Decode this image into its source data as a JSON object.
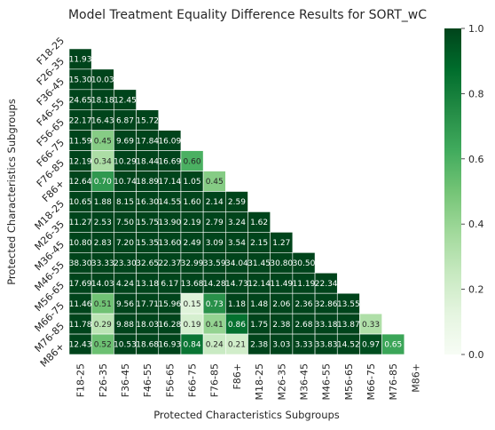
{
  "chart_data": {
    "type": "heatmap",
    "title": "Model Treatment Equality Difference Results for SORT_wC",
    "xlabel": "Protected Characteristics Subgroups",
    "ylabel": "Protected Characteristics Subgroups",
    "row_labels": [
      "F18-25",
      "F26-35",
      "F36-45",
      "F46-55",
      "F56-65",
      "F66-75",
      "F76-85",
      "F86+",
      "M18-25",
      "M26-35",
      "M36-45",
      "M46-55",
      "M56-65",
      "M66-75",
      "M76-85",
      "M86+"
    ],
    "col_labels": [
      "F18-25",
      "F26-35",
      "F36-45",
      "F46-55",
      "F56-65",
      "F66-75",
      "F76-85",
      "F86+",
      "M18-25",
      "M26-35",
      "M36-45",
      "M46-55",
      "M56-65",
      "M66-75",
      "M76-85",
      "M86+"
    ],
    "mask": "upper-triangle-including-diagonal",
    "value_labels": [
      [],
      [
        "11.93"
      ],
      [
        "15.30",
        "10.03"
      ],
      [
        "24.65",
        "18.18",
        "12.45"
      ],
      [
        "22.17",
        "16.43",
        "6.87",
        "15.72"
      ],
      [
        "11.59",
        "0.45",
        "9.69",
        "17.84",
        "16.09"
      ],
      [
        "12.19",
        "0.34",
        "10.29",
        "18.44",
        "16.69",
        "0.60"
      ],
      [
        "12.64",
        "0.70",
        "10.74",
        "18.89",
        "17.14",
        "1.05",
        "0.45"
      ],
      [
        "10.65",
        "1.88",
        "8.15",
        "16.30",
        "14.55",
        "1.60",
        "2.14",
        "2.59"
      ],
      [
        "11.27",
        "2.53",
        "7.50",
        "15.75",
        "13.90",
        "2.19",
        "2.79",
        "3.24",
        "1.62"
      ],
      [
        "10.80",
        "2.83",
        "7.20",
        "15.35",
        "13.60",
        "2.49",
        "3.09",
        "3.54",
        "2.15",
        "1.27"
      ],
      [
        "38.30",
        "33.33",
        "23.30",
        "32.65",
        "22.37",
        "32.99",
        "33.59",
        "34.04",
        "31.45",
        "30.80",
        "30.50"
      ],
      [
        "17.69",
        "14.03",
        "4.24",
        "13.18",
        "6.17",
        "13.68",
        "14.28",
        "14.73",
        "12.14",
        "11.49",
        "11.19",
        "22.34"
      ],
      [
        "11.46",
        "0.51",
        "9.56",
        "17.71",
        "15.96",
        "0.15",
        "0.73",
        "1.18",
        "1.48",
        "2.06",
        "2.36",
        "32.86",
        "13.55"
      ],
      [
        "11.78",
        "0.29",
        "9.88",
        "18.03",
        "16.28",
        "0.19",
        "0.41",
        "0.86",
        "1.75",
        "2.38",
        "2.68",
        "33.18",
        "13.87",
        "0.33"
      ],
      [
        "12.43",
        "0.52",
        "10.53",
        "18.68",
        "16.93",
        "0.84",
        "0.24",
        "0.21",
        "2.38",
        "3.03",
        "3.33",
        "33.83",
        "14.52",
        "0.97",
        "0.65"
      ]
    ],
    "color_values": [
      [],
      [
        1
      ],
      [
        1,
        1
      ],
      [
        1,
        1,
        1
      ],
      [
        1,
        1,
        1,
        1
      ],
      [
        1,
        0.45,
        1,
        1,
        1
      ],
      [
        1,
        0.34,
        1,
        1,
        1,
        0.6
      ],
      [
        1,
        0.7,
        1,
        1,
        1,
        1,
        0.45
      ],
      [
        1,
        1,
        1,
        1,
        1,
        1,
        1,
        1
      ],
      [
        1,
        1,
        1,
        1,
        1,
        1,
        1,
        1,
        1
      ],
      [
        1,
        1,
        1,
        1,
        1,
        1,
        1,
        1,
        1,
        1
      ],
      [
        1,
        1,
        1,
        1,
        1,
        1,
        1,
        1,
        1,
        1,
        1
      ],
      [
        1,
        1,
        1,
        1,
        1,
        1,
        1,
        1,
        1,
        1,
        1,
        1
      ],
      [
        1,
        0.51,
        1,
        1,
        1,
        0.15,
        0.73,
        1,
        1,
        1,
        1,
        1,
        1
      ],
      [
        1,
        0.29,
        1,
        1,
        1,
        0.19,
        0.41,
        0.86,
        1,
        1,
        1,
        1,
        1,
        0.33
      ],
      [
        1,
        0.52,
        1,
        1,
        1,
        0.84,
        0.24,
        0.21,
        1,
        1,
        1,
        1,
        1,
        0.97,
        0.65
      ]
    ],
    "colormap": "Greens",
    "colorbar": {
      "min": 0.0,
      "max": 1.0,
      "ticks": [
        "0.0",
        "0.2",
        "0.4",
        "0.6",
        "0.8",
        "1.0"
      ]
    },
    "grid": false
  }
}
